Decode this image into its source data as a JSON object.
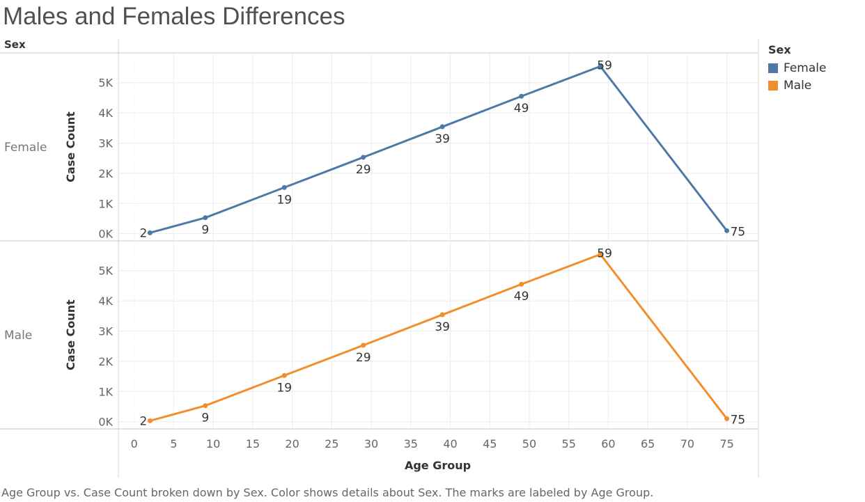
{
  "title": "Males and Females Differences",
  "row_header": "Sex",
  "legend": {
    "title": "Sex",
    "items": [
      {
        "label": "Female",
        "color": "#4e79a7"
      },
      {
        "label": "Male",
        "color": "#f28e2b"
      }
    ]
  },
  "caption": "Age Group vs. Case Count broken down by Sex.  Color shows details about Sex.  The marks are labeled by Age Group.",
  "chart_data": {
    "type": "line",
    "xlabel": "Age Group",
    "ylabel": "Case Count",
    "xlim": [
      -2,
      79
    ],
    "ylim": [
      -100,
      5800
    ],
    "x_ticks": [
      0,
      5,
      10,
      15,
      20,
      25,
      30,
      35,
      40,
      45,
      50,
      55,
      60,
      65,
      70,
      75
    ],
    "y_ticks": [
      0,
      1000,
      2000,
      3000,
      4000,
      5000
    ],
    "y_tick_labels": [
      "0K",
      "1K",
      "2K",
      "3K",
      "4K",
      "5K"
    ],
    "grid": true,
    "legend_position": "top-right",
    "series": [
      {
        "name": "Female",
        "color": "#4e79a7",
        "x": [
          2,
          9,
          19,
          29,
          39,
          49,
          59,
          75
        ],
        "values": [
          30,
          530,
          1530,
          2530,
          3540,
          4550,
          5540,
          100
        ],
        "labels": [
          "2",
          "9",
          "19",
          "29",
          "39",
          "49",
          "59",
          "75"
        ]
      },
      {
        "name": "Male",
        "color": "#f28e2b",
        "x": [
          2,
          9,
          19,
          29,
          39,
          49,
          59,
          75
        ],
        "values": [
          30,
          530,
          1530,
          2530,
          3540,
          4550,
          5540,
          100
        ],
        "labels": [
          "2",
          "9",
          "19",
          "29",
          "39",
          "49",
          "59",
          "75"
        ]
      }
    ]
  }
}
